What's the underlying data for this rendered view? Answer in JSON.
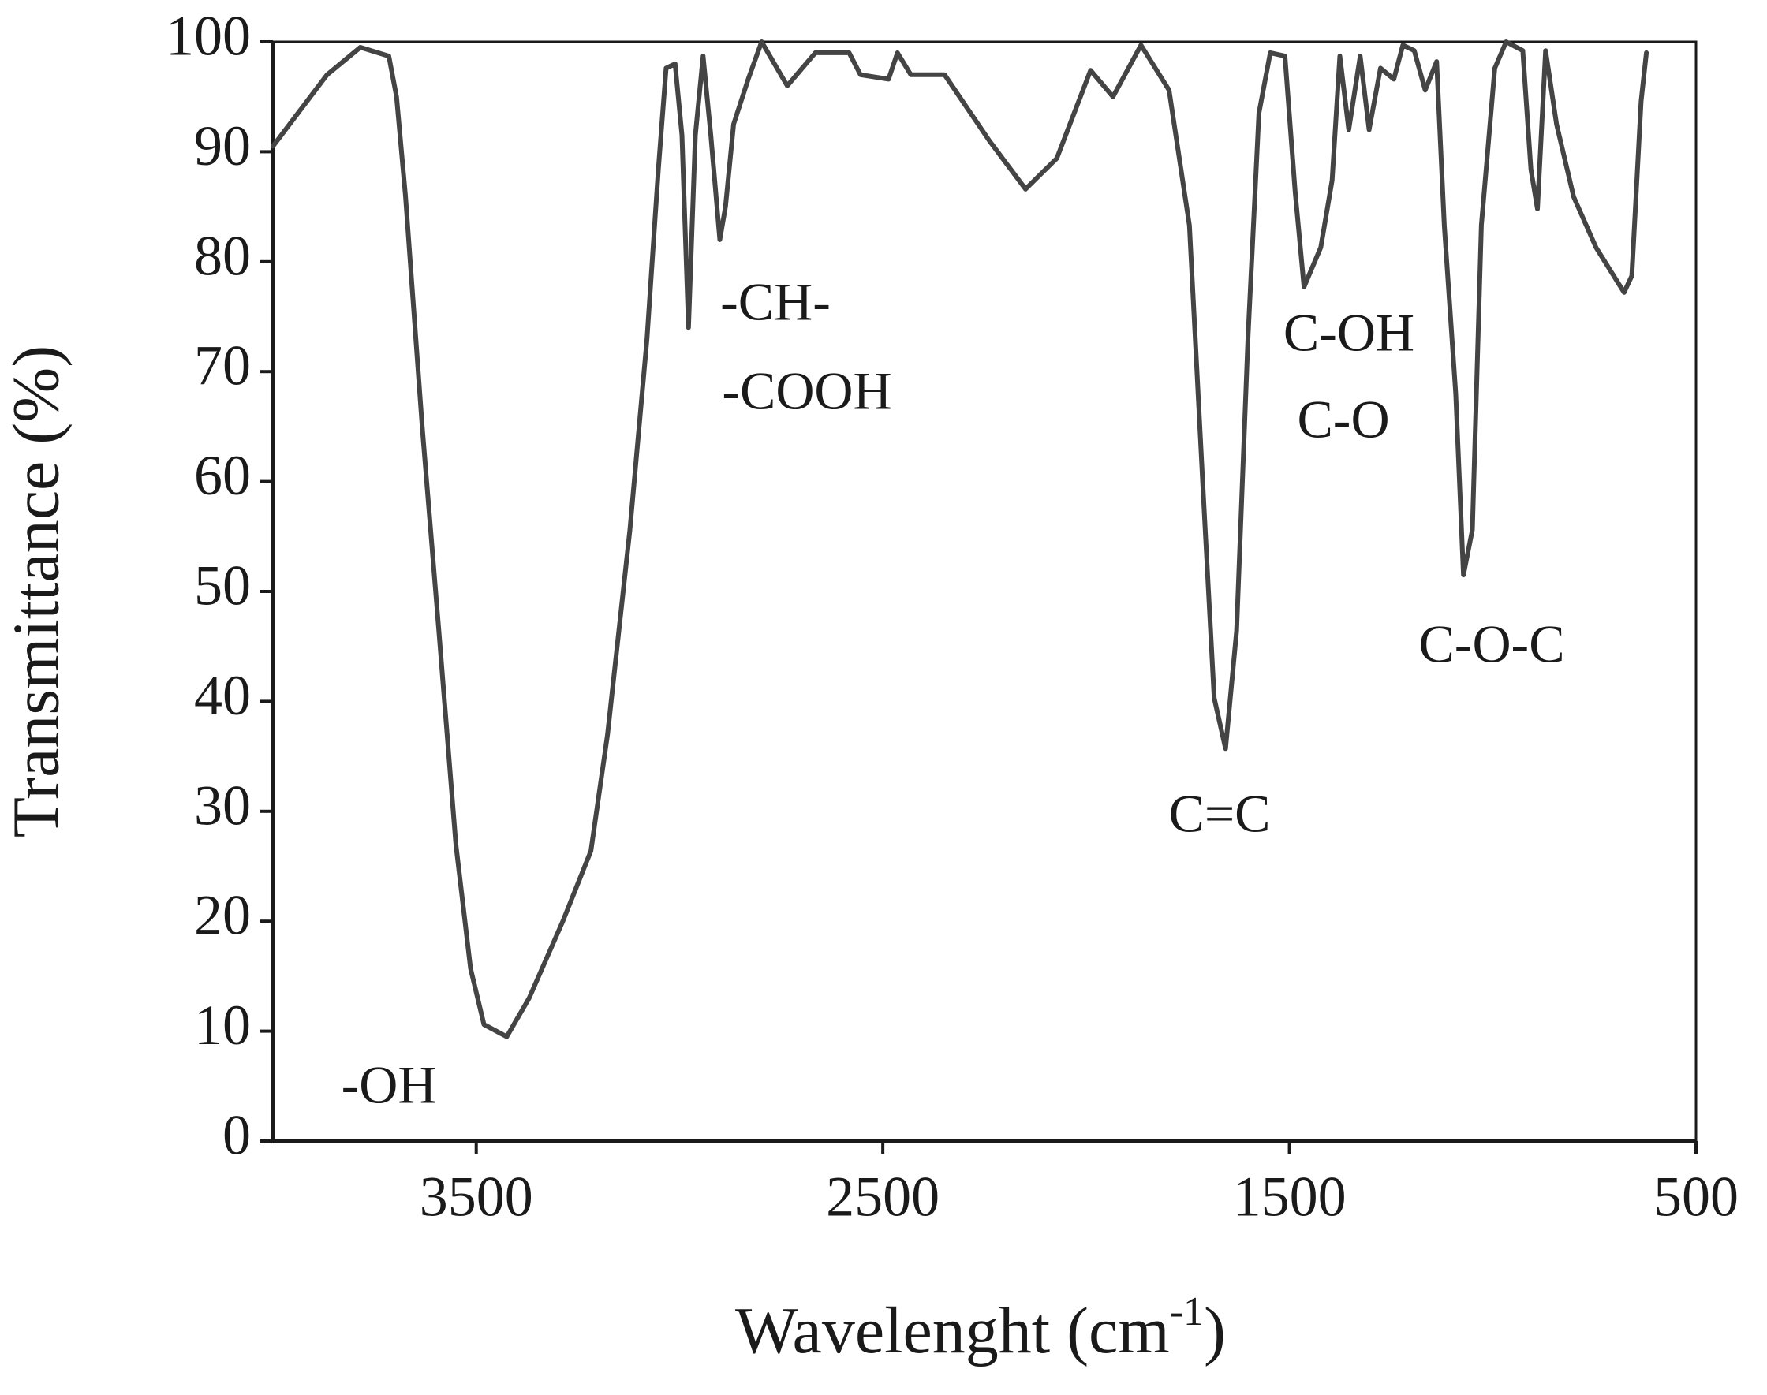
{
  "chart_data": {
    "type": "line",
    "xlabel": {
      "text": "Wavelenght (cm",
      "superscript": "-1",
      "suffix": ")"
    },
    "ylabel": "Transmittance (%)",
    "annotations": [
      "-OH",
      "-CH-",
      "-COOH",
      "C=C",
      "C-OH",
      "C-O",
      "C-O-C"
    ],
    "x": [
      4000,
      3867,
      3785,
      3715,
      3696,
      3674,
      3633,
      3591,
      3550,
      3514,
      3481,
      3425,
      3370,
      3287,
      3218,
      3177,
      3122,
      3080,
      3052,
      3033,
      3011,
      2994,
      2978,
      2961,
      2942,
      2923,
      2901,
      2887,
      2867,
      2831,
      2798,
      2735,
      2666,
      2583,
      2555,
      2486,
      2464,
      2431,
      2348,
      2238,
      2149,
      2072,
      1989,
      1934,
      1865,
      1796,
      1746,
      1713,
      1685,
      1657,
      1630,
      1602,
      1575,
      1547,
      1511,
      1486,
      1464,
      1423,
      1395,
      1376,
      1354,
      1326,
      1304,
      1276,
      1243,
      1221,
      1193,
      1166,
      1138,
      1119,
      1091,
      1072,
      1050,
      1028,
      995,
      967,
      926,
      906,
      890,
      870,
      843,
      801,
      746,
      677,
      658,
      635,
      622
    ],
    "series": [
      {
        "color": "#444444",
        "values": [
          90.5,
          97,
          99.5,
          98.7,
          95,
          86,
          65,
          46,
          27,
          15.7,
          10.6,
          9.5,
          13,
          20,
          26.4,
          37,
          55.6,
          73,
          88.4,
          97.6,
          98,
          91.5,
          74,
          91.5,
          98.7,
          91.5,
          82,
          85,
          92.5,
          96.6,
          100,
          96,
          99,
          99,
          97,
          96.6,
          99,
          97,
          97,
          91,
          86.6,
          89.4,
          97.4,
          95,
          99.7,
          95.6,
          83.3,
          59.7,
          40.3,
          35.7,
          46.4,
          73,
          93.5,
          99,
          98.7,
          86.4,
          77.7,
          81.3,
          87.4,
          98.7,
          92,
          98.7,
          92,
          97.6,
          96.6,
          99.7,
          99.2,
          95.6,
          98.2,
          83.3,
          68,
          51.5,
          55.6,
          83.3,
          97.6,
          100,
          99.2,
          88.4,
          84.8,
          99.2,
          92.5,
          85.9,
          81.3,
          77.2,
          78.7,
          94.6,
          99
        ]
      }
    ],
    "xlim": [
      4000,
      500
    ],
    "xticks": [
      3500,
      2500,
      1500,
      500
    ],
    "ylim": [
      0,
      100
    ],
    "yticks": [
      0,
      10,
      20,
      30,
      40,
      50,
      60,
      70,
      80,
      90,
      100
    ],
    "grid": false
  }
}
